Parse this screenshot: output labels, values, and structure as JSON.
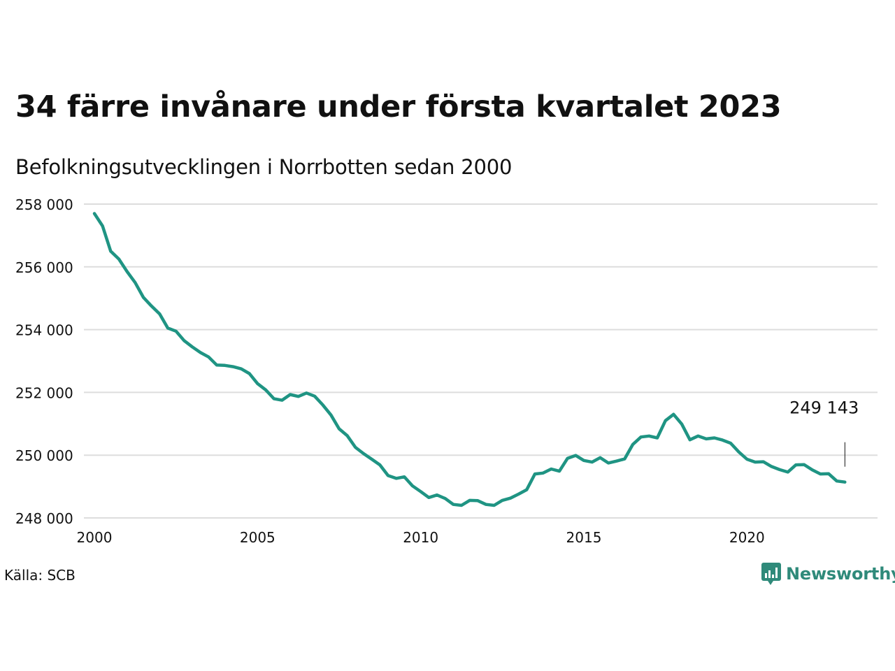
{
  "title": "34 färre invånare under första kvartalet 2023",
  "subtitle": "Befolkningsutvecklingen i Norrbotten sedan 2000",
  "source": "Källa: SCB",
  "brand": {
    "name": "Newsworthy",
    "color": "#2f8a7a",
    "icon": "newsworthy-logo-icon"
  },
  "colors": {
    "line": "#1f9483",
    "grid": "#dddddd",
    "text": "#111111"
  },
  "chart_data": {
    "type": "line",
    "title": "34 färre invånare under första kvartalet 2023",
    "subtitle": "Befolkningsutvecklingen i Norrbotten sedan 2000",
    "xlabel": "",
    "ylabel": "",
    "xlim": [
      2000,
      2024
    ],
    "ylim": [
      248000,
      258000
    ],
    "x_ticks": [
      2000,
      2005,
      2010,
      2015,
      2020
    ],
    "y_ticks": [
      {
        "value": 248000,
        "label": "248 000"
      },
      {
        "value": 250000,
        "label": "250 000"
      },
      {
        "value": 252000,
        "label": "252 000"
      },
      {
        "value": 254000,
        "label": "254 000"
      },
      {
        "value": 256000,
        "label": "256 000"
      },
      {
        "value": 258000,
        "label": "258 000"
      }
    ],
    "grid": true,
    "annotation": {
      "x": 2023.0,
      "value": 249143,
      "label": "249 143"
    },
    "series": [
      {
        "x": [
          2000.0,
          2000.25,
          2000.5,
          2000.75,
          2001.0,
          2001.25,
          2001.5,
          2001.75,
          2002.0,
          2002.25,
          2002.5,
          2002.75,
          2003.0,
          2003.25,
          2003.5,
          2003.75,
          2004.0,
          2004.25,
          2004.5,
          2004.75,
          2005.0,
          2005.25,
          2005.5,
          2005.75,
          2006.0,
          2006.25,
          2006.5,
          2006.75,
          2007.0,
          2007.25,
          2007.5,
          2007.75,
          2008.0,
          2008.25,
          2008.5,
          2008.75,
          2009.0,
          2009.25,
          2009.5,
          2009.75,
          2010.0,
          2010.25,
          2010.5,
          2010.75,
          2011.0,
          2011.25,
          2011.5,
          2011.75,
          2012.0,
          2012.25,
          2012.5,
          2012.75,
          2013.0,
          2013.25,
          2013.5,
          2013.75,
          2014.0,
          2014.25,
          2014.5,
          2014.75,
          2015.0,
          2015.25,
          2015.5,
          2015.75,
          2016.0,
          2016.25,
          2016.5,
          2016.75,
          2017.0,
          2017.25,
          2017.5,
          2017.75,
          2018.0,
          2018.25,
          2018.5,
          2018.75,
          2019.0,
          2019.25,
          2019.5,
          2019.75,
          2020.0,
          2020.25,
          2020.5,
          2020.75,
          2021.0,
          2021.25,
          2021.5,
          2021.75,
          2022.0,
          2022.25,
          2022.5,
          2022.75,
          2023.0
        ],
        "values": [
          257700,
          257300,
          256500,
          256250,
          255850,
          255500,
          255030,
          254750,
          254500,
          254050,
          253950,
          253650,
          253450,
          253270,
          253130,
          252870,
          252860,
          252820,
          252750,
          252600,
          252280,
          252080,
          251800,
          251750,
          251930,
          251870,
          251980,
          251880,
          251600,
          251280,
          250840,
          250620,
          250250,
          250050,
          249870,
          249690,
          249350,
          249260,
          249310,
          249020,
          248840,
          248650,
          248730,
          248620,
          248430,
          248400,
          248560,
          248550,
          248430,
          248400,
          248560,
          248630,
          248760,
          248900,
          249400,
          249430,
          249560,
          249490,
          249900,
          249990,
          249830,
          249780,
          249920,
          249750,
          249810,
          249880,
          250340,
          250580,
          250610,
          250550,
          251100,
          251300,
          250990,
          250490,
          250610,
          250520,
          250550,
          250480,
          250380,
          250100,
          249870,
          249780,
          249790,
          249640,
          249540,
          249460,
          249690,
          249700,
          249530,
          249400,
          249410,
          249177,
          249143
        ]
      }
    ]
  }
}
